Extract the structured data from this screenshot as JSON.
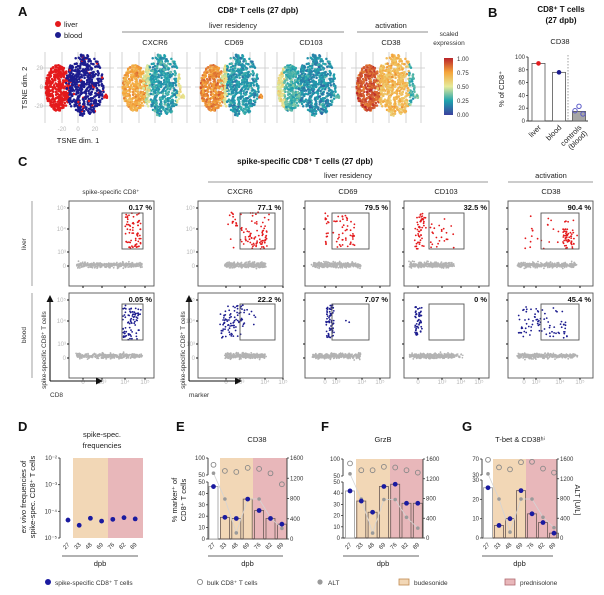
{
  "panel_a": {
    "label": "A",
    "title": "CD8⁺ T cells (27 dpb)",
    "legend": [
      {
        "label": "liver",
        "color": "#e41a1c"
      },
      {
        "label": "blood",
        "color": "#1c1c8f"
      }
    ],
    "group_liver_residency": "liver residency",
    "group_activation": "activation",
    "markers": [
      "CXCR6",
      "CD69",
      "CD103",
      "CD38"
    ],
    "xlabel": "TSNE dim. 1",
    "ylabel": "TSNE dim. 2",
    "xticks": [
      "-20",
      "0",
      "20"
    ],
    "yticks": [
      "20",
      "0",
      "-20"
    ],
    "colorbar": {
      "title_line1": "scaled",
      "title_line2": "expression",
      "ticks": [
        "1.00",
        "0.75",
        "0.50",
        "0.25",
        "0.00"
      ],
      "colors": [
        "#3b3f9e",
        "#1fa3ad",
        "#e6eb9b",
        "#f5a53a",
        "#b92329"
      ]
    }
  },
  "panel_c": {
    "label": "C",
    "title": "spike-specific CD8⁺ T cells  (27 dpb)",
    "group_liver_residency": "liver residency",
    "group_activation": "activation",
    "columns": [
      "spike-specific CD8⁺",
      "CXCR6",
      "CD69",
      "CD103",
      "CD38"
    ],
    "rows": [
      "liver",
      "blood"
    ],
    "percentages": [
      [
        "0.17 %",
        "77.1 %",
        "79.5 %",
        "32.5 %",
        "90.4 %"
      ],
      [
        "0.05 %",
        "22.2 %",
        "7.07 %",
        "0 %",
        "45.4 %"
      ]
    ],
    "yticks": [
      "10⁵",
      "10⁴",
      "10³",
      "0"
    ],
    "xticks": [
      "0",
      "10³",
      "10⁴",
      "10⁵"
    ],
    "ylabel": "spike-specific CD8⁺ T cells",
    "xlabel_first": "CD8",
    "xlabel_marker": "marker"
  },
  "legend": {
    "spike": "spike-specific CD8⁺ T cells",
    "bulk": "bulk CD8⁺ T cells",
    "alt": "ALT",
    "budesonide": "budesonide",
    "prednisolone": "prednisolone",
    "colors": {
      "spike": "#1a1aa0",
      "bulk": "#888888",
      "alt": "#9a9a9a",
      "budesonide": "#f2d7b6",
      "prednisolone": "#e8b7ba"
    }
  },
  "chart_data": [
    {
      "panel": "B",
      "type": "bar",
      "title_line1": "CD8⁺ T cells",
      "title_line2": "(27 dpb)",
      "subtitle": "CD38",
      "ylabel": "% of CD8⁺",
      "ylim": [
        0,
        100
      ],
      "yticks": [
        "0",
        "20",
        "40",
        "60",
        "80",
        "100"
      ],
      "categories": [
        "liver",
        "blood",
        "controls (blood)"
      ],
      "values": [
        90,
        76,
        15
      ],
      "points": [
        [
          90
        ],
        [
          76
        ],
        [
          16,
          23,
          11
        ]
      ],
      "colors": [
        "#e41a1c",
        "#1c1c8f",
        "#5b5bc8"
      ]
    },
    {
      "panel": "D",
      "type": "scatter",
      "title_lines": [
        "spike-spec.",
        "frequencies"
      ],
      "ylabel_italic": "ex vivo",
      "ylabel_line1_rest": " frequencies of",
      "ylabel_line2": "spike-spec. CD8⁺ T cells",
      "yscale": "log",
      "ylim": [
        1e-05,
        0.01
      ],
      "yticks": [
        "10⁻²",
        "10⁻³",
        "10⁻⁴",
        "10⁻⁵"
      ],
      "xlabel": "dpb",
      "categories": [
        "27",
        "33",
        "48",
        "69",
        "76",
        "82",
        "89"
      ],
      "series": [
        {
          "name": "spike-specific CD8⁺ T cells",
          "values": [
            4.7e-05,
            3e-05,
            5.5e-05,
            4.3e-05,
            5e-05,
            5.8e-05,
            5.2e-05
          ]
        }
      ],
      "shaded_regions": [
        {
          "label": "budesonide",
          "categories": [
            "33",
            "48",
            "69"
          ]
        },
        {
          "label": "prednisolone",
          "categories": [
            "76",
            "82",
            "89"
          ]
        }
      ]
    },
    {
      "panel": "E",
      "type": "bar",
      "title": "CD38",
      "ylabel_lines": [
        "% marker⁺ of",
        "CD8⁺ T cells"
      ],
      "ylabel_right": "",
      "xlabel": "dpb",
      "categories": [
        "27",
        "33",
        "48",
        "69",
        "76",
        "82",
        "89"
      ],
      "y_left_broken": {
        "lower": [
          0,
          50
        ],
        "upper": [
          50,
          100
        ],
        "lower_ticks": [
          "0",
          "10",
          "20",
          "30",
          "40",
          "50"
        ],
        "upper_ticks": [
          "50",
          "100"
        ]
      },
      "y_right": {
        "ylim": [
          0,
          1600
        ],
        "ticks": [
          "0",
          "400",
          "800",
          "1200",
          "1600"
        ]
      },
      "series": [
        {
          "name": "spike-specific CD8⁺ T cells",
          "values": [
            46,
            19,
            18,
            35,
            25,
            18,
            13
          ]
        },
        {
          "name": "bulk CD8⁺ T cells",
          "values": [
            80,
            62,
            59,
            71,
            68,
            55,
            48
          ]
        },
        {
          "name": "ALT",
          "axis": "right",
          "values": [
            1300,
            790,
            120,
            790,
            790,
            420,
            210
          ]
        }
      ]
    },
    {
      "panel": "F",
      "type": "bar",
      "title": "GrzB",
      "ylabel_lines": [],
      "ylabel_right": "",
      "xlabel": "dpb",
      "categories": [
        "27",
        "33",
        "48",
        "69",
        "76",
        "82",
        "89"
      ],
      "y_left_broken": {
        "lower": [
          0,
          50
        ],
        "upper": [
          50,
          100
        ],
        "lower_ticks": [
          "0",
          "10",
          "20",
          "30",
          "40",
          "50"
        ],
        "upper_ticks": [
          "50",
          "100"
        ]
      },
      "y_right": {
        "ylim": [
          0,
          1600
        ],
        "ticks": [
          "0",
          "400",
          "800",
          "1200",
          "1600"
        ]
      },
      "series": [
        {
          "name": "spike-specific CD8⁺ T cells",
          "values": [
            42,
            33,
            23,
            46,
            48,
            31,
            31
          ]
        },
        {
          "name": "bulk CD8⁺ T cells",
          "values": [
            87,
            67,
            67,
            77,
            75,
            67,
            60
          ]
        },
        {
          "name": "ALT",
          "axis": "right",
          "values": [
            1300,
            790,
            100,
            780,
            780,
            420,
            200
          ]
        }
      ]
    },
    {
      "panel": "G",
      "type": "bar",
      "title": "T-bet & CD38ʰⁱ",
      "ylabel_lines": [],
      "ylabel_right": "ALT [U/L]",
      "xlabel": "dpb",
      "categories": [
        "27",
        "33",
        "48",
        "69",
        "76",
        "82",
        "89"
      ],
      "y_left_broken": {
        "lower": [
          0,
          30
        ],
        "upper": [
          30,
          70
        ],
        "lower_ticks": [
          "0",
          "10",
          "20",
          "30"
        ],
        "upper_ticks": [
          "30",
          "70"
        ]
      },
      "y_right": {
        "ylim": [
          0,
          1600
        ],
        "ticks": [
          "0",
          "400",
          "800",
          "1200",
          "1600"
        ]
      },
      "series": [
        {
          "name": "spike-specific CD8⁺ T cells",
          "values": [
            26,
            6.5,
            10,
            24.5,
            12.5,
            8,
            2.5
          ]
        },
        {
          "name": "bulk CD8⁺ T cells",
          "values": [
            68,
            49,
            44,
            62,
            63,
            46,
            36
          ]
        },
        {
          "name": "ALT",
          "axis": "right",
          "values": [
            1300,
            790,
            120,
            790,
            790,
            420,
            210
          ]
        }
      ]
    }
  ]
}
